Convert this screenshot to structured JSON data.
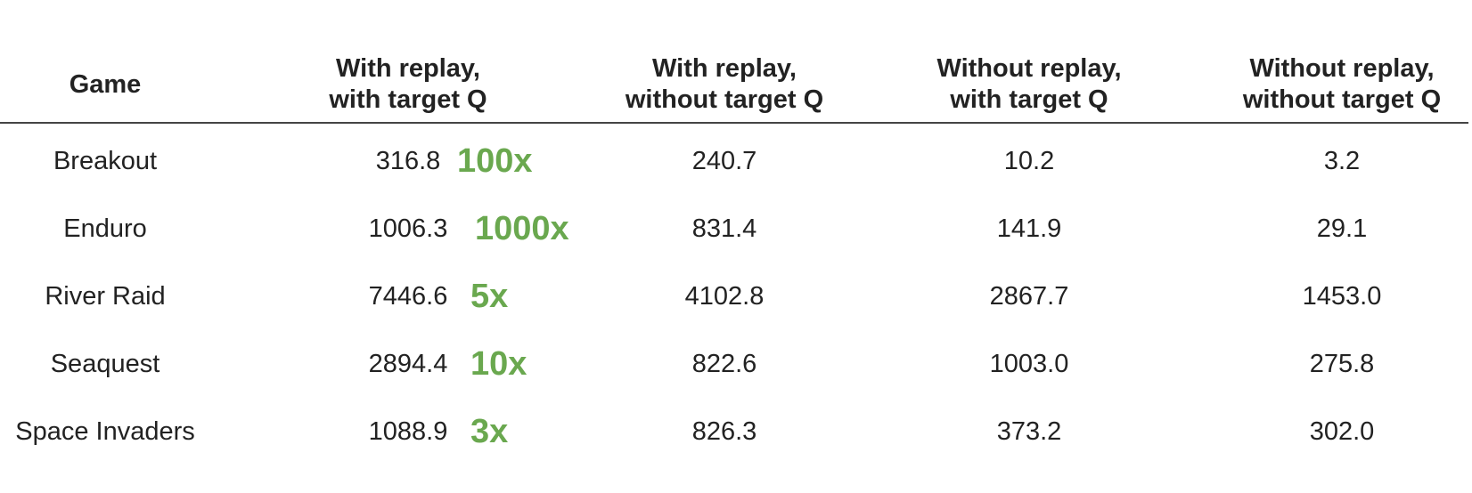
{
  "table": {
    "columns": [
      "Game",
      "With replay,\nwith target Q",
      "With replay,\nwithout target Q",
      "Without replay,\nwith target Q",
      "Without replay,\nwithout target Q"
    ],
    "rows": [
      {
        "game": "Breakout",
        "values": [
          "316.8",
          "240.7",
          "10.2",
          "3.2"
        ],
        "gain": "100x"
      },
      {
        "game": "Enduro",
        "values": [
          "1006.3",
          "831.4",
          "141.9",
          "29.1"
        ],
        "gain": "1000x"
      },
      {
        "game": "River Raid",
        "values": [
          "7446.6",
          "4102.8",
          "2867.7",
          "1453.0"
        ],
        "gain": "5x"
      },
      {
        "game": "Seaquest",
        "values": [
          "2894.4",
          "822.6",
          "1003.0",
          "275.8"
        ],
        "gain": "10x"
      },
      {
        "game": "Space Invaders",
        "values": [
          "1088.9",
          "826.3",
          "373.2",
          "302.0"
        ],
        "gain": "3x"
      }
    ],
    "gain_color": "#6aa84f"
  },
  "chart_data": {
    "type": "table",
    "columns": [
      "Game",
      "With replay, with target Q",
      "With replay, without target Q",
      "Without replay, with target Q",
      "Without replay, without target Q"
    ],
    "rows": [
      [
        "Breakout",
        316.8,
        240.7,
        10.2,
        3.2
      ],
      [
        "Enduro",
        1006.3,
        831.4,
        141.9,
        29.1
      ],
      [
        "River Raid",
        7446.6,
        4102.8,
        2867.7,
        1453.0
      ],
      [
        "Seaquest",
        2894.4,
        822.6,
        1003.0,
        275.8
      ],
      [
        "Space Invaders",
        1088.9,
        826.3,
        373.2,
        302.0
      ]
    ],
    "annotations": [
      "100x",
      "1000x",
      "5x",
      "10x",
      "3x"
    ]
  }
}
